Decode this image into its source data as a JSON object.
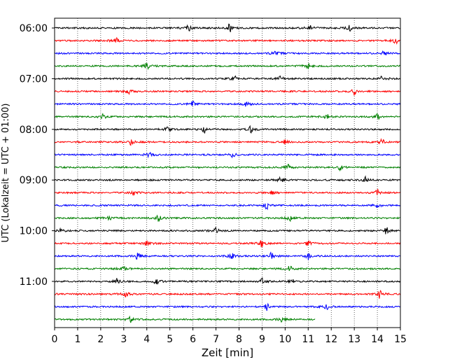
{
  "chart_data": {
    "type": "line",
    "title": "",
    "xlabel": "Zeit  [min]",
    "ylabel": "UTC (Lokalzeit = UTC + 01:00)",
    "xlim": [
      0,
      15
    ],
    "x_ticks": [
      "0",
      "1",
      "2",
      "3",
      "4",
      "5",
      "6",
      "7",
      "8",
      "9",
      "10",
      "11",
      "12",
      "13",
      "14",
      "15"
    ],
    "y_tick_labels": [
      "06:00",
      "07:00",
      "08:00",
      "09:00",
      "10:00",
      "11:00"
    ],
    "grid": "vertical dotted lines at each minute",
    "trace_interval_minutes": 15,
    "first_trace": "06:00",
    "trace_colors": [
      "#000000",
      "#ff0000",
      "#0000ff",
      "#008000"
    ],
    "traces": [
      {
        "start": "06:00",
        "color": "#000000",
        "end_min": 15,
        "events": [
          [
            5.8,
            4
          ],
          [
            7.6,
            6
          ],
          [
            11.1,
            3
          ],
          [
            12.8,
            3
          ]
        ]
      },
      {
        "start": "06:15",
        "color": "#ff0000",
        "end_min": 15,
        "events": [
          [
            2.7,
            3
          ],
          [
            14.8,
            3
          ]
        ]
      },
      {
        "start": "06:30",
        "color": "#0000ff",
        "end_min": 15,
        "events": [
          [
            9.6,
            4
          ],
          [
            14.3,
            3
          ]
        ]
      },
      {
        "start": "06:45",
        "color": "#008000",
        "end_min": 15,
        "events": [
          [
            4.0,
            4
          ],
          [
            11.0,
            3
          ]
        ]
      },
      {
        "start": "07:00",
        "color": "#000000",
        "end_min": 15,
        "events": [
          [
            7.8,
            3
          ],
          [
            9.8,
            3
          ],
          [
            14.2,
            3
          ]
        ]
      },
      {
        "start": "07:15",
        "color": "#ff0000",
        "end_min": 15,
        "events": [
          [
            3.2,
            3
          ],
          [
            13.0,
            4
          ]
        ]
      },
      {
        "start": "07:30",
        "color": "#0000ff",
        "end_min": 15,
        "events": [
          [
            6.0,
            4
          ],
          [
            8.3,
            3
          ]
        ]
      },
      {
        "start": "07:45",
        "color": "#008000",
        "end_min": 15,
        "events": [
          [
            2.1,
            3
          ],
          [
            11.8,
            3
          ],
          [
            14.0,
            4
          ]
        ]
      },
      {
        "start": "08:00",
        "color": "#000000",
        "end_min": 15,
        "events": [
          [
            4.9,
            4
          ],
          [
            6.5,
            5
          ],
          [
            8.5,
            5
          ]
        ]
      },
      {
        "start": "08:15",
        "color": "#ff0000",
        "end_min": 15,
        "events": [
          [
            3.3,
            3
          ],
          [
            10.0,
            4
          ],
          [
            14.2,
            3
          ]
        ]
      },
      {
        "start": "08:30",
        "color": "#0000ff",
        "end_min": 15,
        "events": [
          [
            4.1,
            3
          ],
          [
            7.7,
            4
          ]
        ]
      },
      {
        "start": "08:45",
        "color": "#008000",
        "end_min": 15,
        "events": [
          [
            10.1,
            4
          ],
          [
            12.4,
            3
          ]
        ]
      },
      {
        "start": "09:00",
        "color": "#000000",
        "end_min": 15,
        "events": [
          [
            9.8,
            3
          ],
          [
            13.5,
            4
          ]
        ]
      },
      {
        "start": "09:15",
        "color": "#ff0000",
        "end_min": 15,
        "events": [
          [
            3.4,
            3
          ],
          [
            9.4,
            4
          ],
          [
            14.0,
            4
          ]
        ]
      },
      {
        "start": "09:30",
        "color": "#0000ff",
        "end_min": 15,
        "events": [
          [
            9.2,
            5
          ],
          [
            14.0,
            3
          ]
        ]
      },
      {
        "start": "09:45",
        "color": "#008000",
        "end_min": 15,
        "events": [
          [
            2.4,
            4
          ],
          [
            4.5,
            4
          ],
          [
            10.2,
            3
          ]
        ]
      },
      {
        "start": "10:00",
        "color": "#000000",
        "end_min": 15,
        "events": [
          [
            0.3,
            3
          ],
          [
            7.0,
            4
          ],
          [
            14.4,
            5
          ]
        ]
      },
      {
        "start": "10:15",
        "color": "#ff0000",
        "end_min": 15,
        "events": [
          [
            4.0,
            3
          ],
          [
            9.0,
            5
          ],
          [
            11.0,
            3
          ]
        ]
      },
      {
        "start": "10:30",
        "color": "#0000ff",
        "end_min": 15,
        "events": [
          [
            3.6,
            5
          ],
          [
            7.7,
            4
          ],
          [
            9.4,
            4
          ],
          [
            11.0,
            4
          ]
        ]
      },
      {
        "start": "10:45",
        "color": "#008000",
        "end_min": 15,
        "events": [
          [
            3.0,
            3
          ],
          [
            10.2,
            3
          ]
        ]
      },
      {
        "start": "11:00",
        "color": "#000000",
        "end_min": 15,
        "events": [
          [
            2.7,
            3
          ],
          [
            4.4,
            4
          ],
          [
            9.0,
            4
          ],
          [
            10.3,
            3
          ]
        ]
      },
      {
        "start": "11:15",
        "color": "#ff0000",
        "end_min": 15,
        "events": [
          [
            3.1,
            3
          ],
          [
            14.1,
            5
          ]
        ]
      },
      {
        "start": "11:30",
        "color": "#0000ff",
        "end_min": 15,
        "events": [
          [
            9.2,
            4
          ],
          [
            11.8,
            3
          ]
        ]
      },
      {
        "start": "11:45",
        "color": "#008000",
        "end_min": 11.3,
        "events": [
          [
            3.3,
            3
          ],
          [
            9.8,
            3
          ]
        ]
      }
    ]
  }
}
